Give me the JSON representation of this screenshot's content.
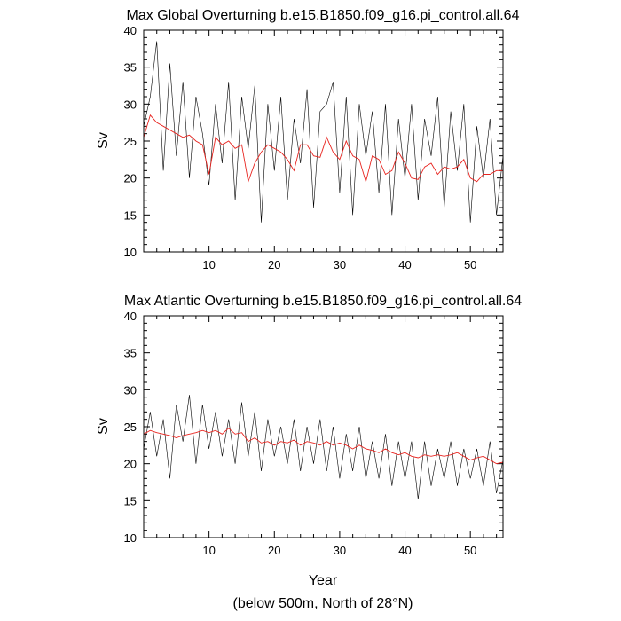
{
  "figure": {
    "x_label": "Year",
    "footnote": "(below 500m, North of 28°N)"
  },
  "chart_data": [
    {
      "type": "line",
      "title": "Max Global Overturning b.e15.B1850.f09_g16.pi_control.all.64",
      "xlabel": "Year",
      "ylabel": "Sv",
      "xlim": [
        0,
        55
      ],
      "ylim": [
        10,
        40
      ],
      "x_ticks": [
        10,
        20,
        30,
        40,
        50
      ],
      "y_ticks": [
        10,
        15,
        20,
        25,
        30,
        35,
        40
      ],
      "grid": false,
      "colors": {
        "raw": "#000000",
        "smoothed": "#e8241f"
      },
      "series": [
        {
          "key": "raw",
          "x": [
            0,
            1,
            2,
            3,
            4,
            5,
            6,
            7,
            8,
            9,
            10,
            11,
            12,
            13,
            14,
            15,
            16,
            17,
            18,
            19,
            20,
            21,
            22,
            23,
            24,
            25,
            26,
            27,
            28,
            29,
            30,
            31,
            32,
            33,
            34,
            35,
            36,
            37,
            38,
            39,
            40,
            41,
            42,
            43,
            44,
            45,
            46,
            47,
            48,
            49,
            50,
            51,
            52,
            53,
            54,
            55
          ],
          "values": [
            27,
            31,
            38.5,
            21,
            35.5,
            23,
            33,
            20,
            31,
            26,
            19,
            30,
            22,
            33,
            17,
            31,
            24,
            32.5,
            14,
            30,
            21,
            31,
            17,
            28,
            22,
            32,
            16,
            29,
            30,
            33,
            18,
            31,
            15,
            30,
            23,
            29,
            18,
            30,
            15,
            28,
            20,
            30,
            17,
            28,
            23,
            31,
            16,
            29,
            21,
            30,
            14,
            27,
            20,
            28,
            15,
            23
          ]
        },
        {
          "key": "smoothed",
          "x": [
            0,
            1,
            2,
            3,
            4,
            5,
            6,
            7,
            8,
            9,
            10,
            11,
            12,
            13,
            14,
            15,
            16,
            17,
            18,
            19,
            20,
            21,
            22,
            23,
            24,
            25,
            26,
            27,
            28,
            29,
            30,
            31,
            32,
            33,
            34,
            35,
            36,
            37,
            38,
            39,
            40,
            41,
            42,
            43,
            44,
            45,
            46,
            47,
            48,
            49,
            50,
            51,
            52,
            53,
            54,
            55
          ],
          "values": [
            25.5,
            28.5,
            27.5,
            27,
            26.5,
            26,
            25.5,
            25.8,
            25,
            24.5,
            20.5,
            25.5,
            24.5,
            25,
            24,
            24.5,
            19.5,
            22,
            23.5,
            24.5,
            24,
            23.5,
            22.5,
            21,
            24.5,
            24.5,
            23,
            22.8,
            25.5,
            23.5,
            22.5,
            25,
            23,
            22.5,
            19.5,
            23,
            22.5,
            20.5,
            21,
            23.5,
            22,
            20,
            19.8,
            21.5,
            22,
            20.5,
            21.5,
            21.2,
            21.5,
            22.5,
            20,
            19.5,
            20.5,
            20.5,
            21,
            21
          ]
        }
      ]
    },
    {
      "type": "line",
      "title": "Max Atlantic Overturning b.e15.B1850.f09_g16.pi_control.all.64",
      "xlabel": "Year",
      "ylabel": "Sv",
      "xlim": [
        0,
        55
      ],
      "ylim": [
        10,
        40
      ],
      "x_ticks": [
        10,
        20,
        30,
        40,
        50
      ],
      "y_ticks": [
        10,
        15,
        20,
        25,
        30,
        35,
        40
      ],
      "grid": false,
      "colors": {
        "raw": "#000000",
        "smoothed": "#e8241f"
      },
      "series": [
        {
          "key": "raw",
          "x": [
            0,
            1,
            2,
            3,
            4,
            5,
            6,
            7,
            8,
            9,
            10,
            11,
            12,
            13,
            14,
            15,
            16,
            17,
            18,
            19,
            20,
            21,
            22,
            23,
            24,
            25,
            26,
            27,
            28,
            29,
            30,
            31,
            32,
            33,
            34,
            35,
            36,
            37,
            38,
            39,
            40,
            41,
            42,
            43,
            44,
            45,
            46,
            47,
            48,
            49,
            50,
            51,
            52,
            53,
            54,
            55
          ],
          "values": [
            22,
            27,
            21,
            26,
            18,
            28,
            23,
            29.3,
            20,
            28,
            22,
            27,
            21,
            26,
            20,
            28.3,
            21,
            27,
            19,
            26,
            21,
            25,
            20,
            26,
            19,
            25,
            20,
            26,
            19,
            25,
            18,
            24,
            19,
            25,
            18,
            23,
            18,
            24,
            17,
            23,
            18,
            23,
            15.2,
            23,
            17,
            22,
            18,
            23,
            17,
            22,
            18,
            22,
            17,
            23,
            16,
            20.5
          ]
        },
        {
          "key": "smoothed",
          "x": [
            0,
            1,
            2,
            3,
            4,
            5,
            6,
            7,
            8,
            9,
            10,
            11,
            12,
            13,
            14,
            15,
            16,
            17,
            18,
            19,
            20,
            21,
            22,
            23,
            24,
            25,
            26,
            27,
            28,
            29,
            30,
            31,
            32,
            33,
            34,
            35,
            36,
            37,
            38,
            39,
            40,
            41,
            42,
            43,
            44,
            45,
            46,
            47,
            48,
            49,
            50,
            51,
            52,
            53,
            54,
            55
          ],
          "values": [
            24,
            24.5,
            24.2,
            24,
            23.8,
            23.5,
            23.8,
            24,
            24.2,
            24.5,
            24.2,
            24.5,
            24,
            24.8,
            24,
            24.2,
            23,
            23.5,
            22.8,
            23,
            22.5,
            23,
            22.8,
            23.2,
            22.5,
            23,
            22.8,
            22.5,
            23,
            22.5,
            22.8,
            22.5,
            22,
            22.5,
            22,
            21.8,
            21.5,
            22,
            21.5,
            21.2,
            21.5,
            21,
            20.8,
            21.2,
            21,
            21.2,
            21,
            21.2,
            21.5,
            21,
            20.5,
            20.8,
            21,
            20.5,
            20,
            20.2
          ]
        }
      ]
    }
  ]
}
